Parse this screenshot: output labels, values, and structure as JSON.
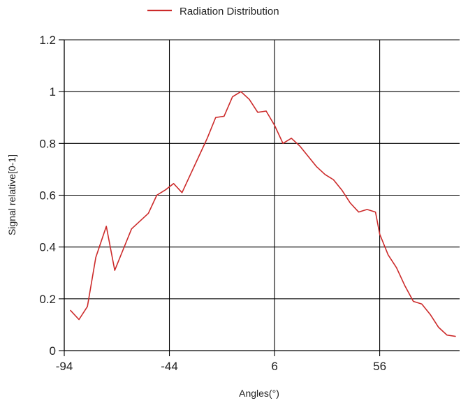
{
  "chart_data": {
    "type": "line",
    "title": "",
    "xlabel": "Angles(°)",
    "ylabel": "Signal relative[0-1]",
    "xlim": [
      -94,
      94
    ],
    "ylim": [
      0,
      1.2
    ],
    "xticks": [
      "-94",
      "-44",
      "6",
      "56"
    ],
    "yticks": [
      "0",
      "0.2",
      "0.4",
      "0.6",
      "0.8",
      "1",
      "1.2"
    ],
    "grid": true,
    "legend_position": "top",
    "series": [
      {
        "name": "Radiation Distribution",
        "color": "#cc2a2a",
        "x": [
          -91,
          -87,
          -83,
          -79,
          -74,
          -70,
          -66,
          -62,
          -58,
          -54,
          -50,
          -46,
          -42,
          -38,
          -34,
          -30,
          -26,
          -22,
          -18,
          -14,
          -10,
          -6,
          -2,
          2,
          6,
          10,
          14,
          18,
          22,
          26,
          30,
          34,
          38,
          42,
          46,
          50,
          54,
          56,
          60,
          64,
          68,
          72,
          76,
          80,
          84,
          88,
          92
        ],
        "y": [
          0.155,
          0.12,
          0.17,
          0.36,
          0.48,
          0.31,
          0.39,
          0.47,
          0.5,
          0.53,
          0.6,
          0.62,
          0.645,
          0.61,
          0.68,
          0.75,
          0.82,
          0.9,
          0.905,
          0.98,
          1.0,
          0.97,
          0.92,
          0.925,
          0.87,
          0.8,
          0.82,
          0.79,
          0.75,
          0.71,
          0.68,
          0.66,
          0.62,
          0.57,
          0.535,
          0.545,
          0.535,
          0.45,
          0.37,
          0.32,
          0.25,
          0.19,
          0.18,
          0.14,
          0.09,
          0.06,
          0.055
        ]
      }
    ]
  }
}
